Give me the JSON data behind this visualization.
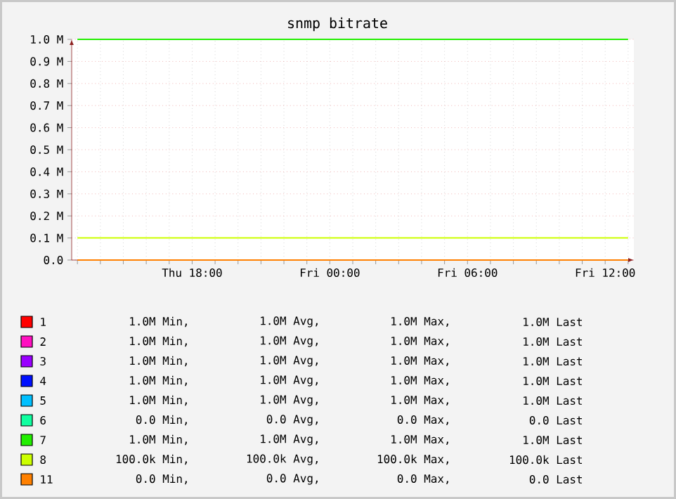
{
  "chart_data": {
    "type": "line",
    "title": "snmp bitrate",
    "categories": [
      null,
      null,
      null,
      null,
      null,
      "Thu 18:00",
      null,
      null,
      null,
      null,
      null,
      "Fri 00:00",
      null,
      null,
      null,
      null,
      null,
      "Fri 06:00",
      null,
      null,
      null,
      null,
      null,
      "Fri 12:00",
      null
    ],
    "ylim": [
      0,
      1.0
    ],
    "yticks": [
      {
        "value": 0,
        "label": "0.0"
      },
      {
        "value": 0.1,
        "label": "0.1 M"
      },
      {
        "value": 0.2,
        "label": "0.2 M"
      },
      {
        "value": 0.3,
        "label": "0.3 M"
      },
      {
        "value": 0.4,
        "label": "0.4 M"
      },
      {
        "value": 0.5,
        "label": "0.5 M"
      },
      {
        "value": 0.6,
        "label": "0.6 M"
      },
      {
        "value": 0.7,
        "label": "0.7 M"
      },
      {
        "value": 0.8,
        "label": "0.8 M"
      },
      {
        "value": 0.9,
        "label": "0.9 M"
      },
      {
        "value": 1.0,
        "label": "1.0 M"
      }
    ],
    "grid": true,
    "legend": "bottom",
    "series": [
      {
        "name": "1",
        "color": "#ff0000",
        "values": [
          null,
          null,
          null,
          null,
          null,
          null,
          null,
          null,
          null,
          null,
          null,
          null,
          null,
          null,
          null,
          null,
          null,
          null,
          null,
          null,
          null,
          null,
          null,
          null,
          null
        ]
      },
      {
        "name": "2",
        "color": "#ff10c0",
        "values": [
          null,
          null,
          null,
          null,
          null,
          null,
          null,
          null,
          null,
          null,
          null,
          null,
          null,
          null,
          null,
          null,
          null,
          null,
          null,
          null,
          null,
          null,
          null,
          null,
          null
        ]
      },
      {
        "name": "3",
        "color": "#9900ff",
        "values": [
          null,
          null,
          null,
          null,
          null,
          null,
          null,
          null,
          null,
          null,
          null,
          null,
          null,
          null,
          null,
          null,
          null,
          null,
          null,
          null,
          null,
          null,
          null,
          null,
          null
        ]
      },
      {
        "name": "4",
        "color": "#0010ff",
        "values": [
          null,
          null,
          null,
          null,
          null,
          null,
          null,
          null,
          null,
          null,
          null,
          null,
          null,
          null,
          null,
          null,
          null,
          null,
          null,
          null,
          null,
          null,
          null,
          null,
          null
        ]
      },
      {
        "name": "5",
        "color": "#00c0ff",
        "values": [
          null,
          null,
          null,
          null,
          null,
          null,
          null,
          null,
          null,
          null,
          null,
          null,
          null,
          null,
          null,
          null,
          null,
          null,
          null,
          null,
          null,
          null,
          null,
          null,
          null
        ]
      },
      {
        "name": "6",
        "color": "#10ffa0",
        "values": [
          null,
          null,
          null,
          null,
          null,
          null,
          null,
          null,
          null,
          null,
          null,
          null,
          null,
          null,
          null,
          null,
          null,
          null,
          null,
          null,
          null,
          null,
          null,
          null,
          null
        ]
      },
      {
        "name": "7",
        "color": "#22ee00",
        "values": [
          1.0,
          1.0,
          1.0,
          1.0,
          1.0,
          1.0,
          1.0,
          1.0,
          1.0,
          1.0,
          1.0,
          1.0,
          1.0,
          1.0,
          1.0,
          1.0,
          1.0,
          1.0,
          1.0,
          1.0,
          1.0,
          1.0,
          1.0,
          1.0,
          1.0
        ]
      },
      {
        "name": "8",
        "color": "#ccff00",
        "values": [
          0.1,
          0.1,
          0.1,
          0.1,
          0.1,
          0.1,
          0.1,
          0.1,
          0.1,
          0.1,
          0.1,
          0.1,
          0.1,
          0.1,
          0.1,
          0.1,
          0.1,
          0.1,
          0.1,
          0.1,
          0.1,
          0.1,
          0.1,
          0.1,
          0.1
        ]
      },
      {
        "name": "11",
        "color": "#ff8000",
        "values": [
          0,
          0,
          0,
          0,
          0,
          0,
          0,
          0,
          0,
          0,
          0,
          0,
          0,
          0,
          0,
          0,
          0,
          0,
          0,
          0,
          0,
          0,
          0,
          0,
          0
        ]
      }
    ],
    "annotations": [
      "1.0M Min,",
      "1.0M Avg,",
      "1.0M Max,",
      "1.0M Last",
      "1.0M Min,",
      "1.0M Avg,",
      "1.0M Max,",
      "1.0M Last",
      "1.0M Min,",
      "1.0M Avg,",
      "1.0M Max,",
      "1.0M Last",
      "1.0M Min,",
      "1.0M Avg,",
      "1.0M Max,",
      "1.0M Last",
      "1.0M Min,",
      "1.0M Avg,",
      "1.0M Max,",
      "1.0M Last",
      "0.0  Min,",
      "0.0  Avg,",
      "0.0  Max,",
      "0.0  Last",
      "1.0M Min,",
      "1.0M Avg,",
      "1.0M Max,",
      "1.0M Last",
      "100.0k Min,",
      "100.0k Avg,",
      "100.0k Max,",
      "100.0k Last",
      "0.0  Min,",
      "0.0  Avg,",
      "0.0  Max,",
      "0.0  Last"
    ]
  }
}
